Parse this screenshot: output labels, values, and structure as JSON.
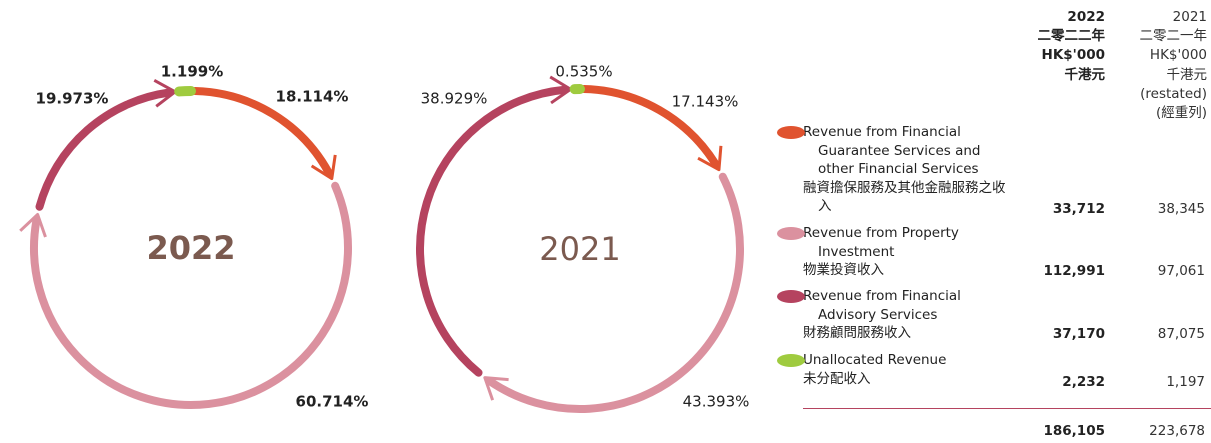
{
  "chart_data": [
    {
      "type": "ring",
      "title": "2022",
      "values": [
        18.114,
        60.714,
        19.973,
        1.199
      ],
      "value_labels": [
        "18.114%",
        "60.714%",
        "19.973%",
        "1.199%"
      ],
      "colors": [
        "#e0532f",
        "#db919f",
        "#b5435f",
        "#9fcb3f"
      ]
    },
    {
      "type": "ring",
      "title": "2021",
      "values": [
        17.143,
        43.393,
        38.929,
        0.535
      ],
      "value_labels": [
        "17.143%",
        "43.393%",
        "38.929%",
        "0.535%"
      ],
      "colors": [
        "#e0532f",
        "#db919f",
        "#b5435f",
        "#9fcb3f"
      ]
    }
  ],
  "table": {
    "header_2022": [
      "2022",
      "二零二二年",
      "HK$'000",
      "千港元"
    ],
    "header_2021": [
      "2021",
      "二零二一年",
      "HK$'000",
      "千港元",
      "(restated)",
      "(經重列)"
    ],
    "rows": [
      {
        "color": "#e0532f",
        "english": "Revenue from Financial Guarantee Services and other Financial Services",
        "chinese": "融資擔保服務及其他金融服務之收入",
        "value_2022": "33,712",
        "value_2021": "38,345"
      },
      {
        "color": "#db919f",
        "english": "Revenue from Property Investment",
        "chinese": "物業投資收入",
        "value_2022": "112,991",
        "value_2021": "97,061"
      },
      {
        "color": "#b5435f",
        "english": "Revenue from Financial Advisory Services",
        "chinese": "財務顧問服務收入",
        "value_2022": "37,170",
        "value_2021": "87,075"
      },
      {
        "color": "#9fcb3f",
        "english": "Unallocated Revenue",
        "chinese": "未分配收入",
        "value_2022": "2,232",
        "value_2021": "1,197"
      }
    ],
    "total_2022": "186,105",
    "total_2021": "223,678"
  }
}
